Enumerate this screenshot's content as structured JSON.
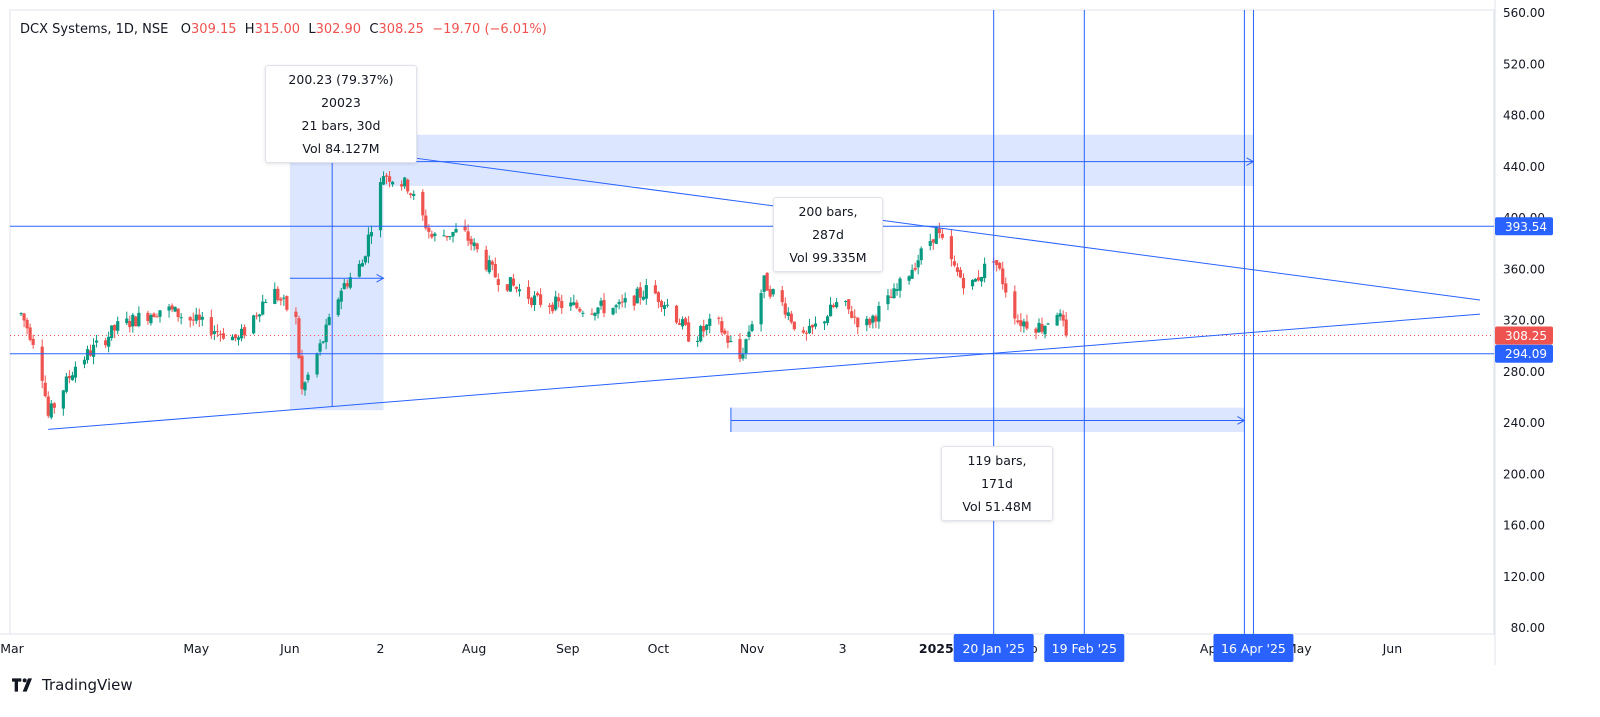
{
  "legend": {
    "symbol": "DCX Systems, 1D, NSE",
    "o_label": "O",
    "o_value": "309.15",
    "h_label": "H",
    "h_value": "315.00",
    "l_label": "L",
    "l_value": "302.90",
    "c_label": "C",
    "c_value": "308.25",
    "change": "−19.70 (−6.01%)"
  },
  "brand": {
    "name": "TradingView"
  },
  "measure_boxes": {
    "box1": {
      "line1": "200.23 (79.37%) 20023",
      "line2": "21 bars, 30d",
      "line3": "Vol 84.127M"
    },
    "box2": {
      "line1": "200 bars, 287d",
      "line2": "Vol 99.335M"
    },
    "box3": {
      "line1": "119 bars, 171d",
      "line2": "Vol 51.48M"
    }
  },
  "colors": {
    "up": "#089981",
    "down": "#ef5350",
    "drawing": "#2962ff",
    "drawing_fill": "rgba(41,98,255,0.16)",
    "axis_text": "#131722"
  },
  "chart_data": {
    "type": "candlestick",
    "symbol": "DCX Systems",
    "interval": "1D",
    "exchange": "NSE",
    "y_axis": {
      "range": [
        80,
        560
      ],
      "ticks": [
        "80.00",
        "120.00",
        "160.00",
        "200.00",
        "240.00",
        "280.00",
        "320.00",
        "360.00",
        "400.00",
        "440.00",
        "480.00",
        "520.00",
        "560.00"
      ]
    },
    "x_axis": {
      "range": [
        "2024-03-01",
        "2025-06-30"
      ],
      "tick_labels": [
        {
          "date": "2024-03-01",
          "label": "Mar"
        },
        {
          "date": "2024-05-01",
          "label": "May"
        },
        {
          "date": "2024-06-01",
          "label": "Jun"
        },
        {
          "date": "2024-07-01",
          "label": "2"
        },
        {
          "date": "2024-08-01",
          "label": "Aug"
        },
        {
          "date": "2024-09-01",
          "label": "Sep"
        },
        {
          "date": "2024-10-01",
          "label": "Oct"
        },
        {
          "date": "2024-11-01",
          "label": "Nov"
        },
        {
          "date": "2024-12-01",
          "label": "3"
        },
        {
          "date": "2025-01-01",
          "label": "2025"
        },
        {
          "date": "2025-02-01",
          "label": "eb"
        },
        {
          "date": "2025-03-01",
          "label": "r"
        },
        {
          "date": "2025-04-01",
          "label": "Ap"
        },
        {
          "date": "2025-05-01",
          "label": "May"
        },
        {
          "date": "2025-06-01",
          "label": "Jun"
        }
      ],
      "date_badges": [
        {
          "date": "2025-01-20",
          "label": "20 Jan '25"
        },
        {
          "date": "2025-02-19",
          "label": "19 Feb '25"
        },
        {
          "date": "2025-04-16",
          "label": "16 Apr '25"
        }
      ]
    },
    "price_labels": [
      {
        "value": 393.54,
        "label": "393.54",
        "kind": "line"
      },
      {
        "value": 308.25,
        "label": "308.25",
        "kind": "last"
      },
      {
        "value": 294.09,
        "label": "294.09",
        "kind": "line"
      }
    ],
    "horizontal_lines": [
      393.54,
      294.09
    ],
    "vertical_lines": [
      "2025-01-20",
      "2025-02-19",
      "2025-04-13",
      "2025-04-16"
    ],
    "trendlines": [
      {
        "from": {
          "date": "2024-03-13",
          "price": 235
        },
        "to": {
          "date": "2025-06-30",
          "price": 325
        }
      },
      {
        "from": {
          "date": "2024-07-02",
          "price": 450
        },
        "to": {
          "date": "2025-06-30",
          "price": 336
        }
      }
    ],
    "ranges": [
      {
        "from": {
          "date": "2024-06-01",
          "price": 450
        },
        "to": {
          "date": "2024-07-02",
          "price": 250
        }
      },
      {
        "from": {
          "date": "2024-07-02",
          "price": 465
        },
        "to": {
          "date": "2025-04-16",
          "price": 425
        }
      },
      {
        "from": {
          "date": "2024-10-25",
          "price": 252
        },
        "to": {
          "date": "2025-04-13",
          "price": 233
        }
      }
    ],
    "arrows": [
      {
        "from": {
          "date": "2024-06-15",
          "price": 253
        },
        "to": {
          "date": "2024-06-15",
          "price": 450
        }
      },
      {
        "from": {
          "date": "2024-06-01",
          "price": 353
        },
        "to": {
          "date": "2024-07-02",
          "price": 353
        }
      },
      {
        "from": {
          "date": "2024-07-02",
          "price": 444
        },
        "to": {
          "date": "2025-04-16",
          "price": 444
        }
      },
      {
        "from": {
          "date": "2024-10-25",
          "price": 242
        },
        "to": {
          "date": "2025-04-13",
          "price": 242
        }
      }
    ],
    "anchors": [
      {
        "date": "2024-03-04",
        "price": 325
      },
      {
        "date": "2024-03-10",
        "price": 295
      },
      {
        "date": "2024-03-13",
        "price": 245
      },
      {
        "date": "2024-03-22",
        "price": 285
      },
      {
        "date": "2024-04-05",
        "price": 315
      },
      {
        "date": "2024-04-20",
        "price": 330
      },
      {
        "date": "2024-05-05",
        "price": 315
      },
      {
        "date": "2024-05-15",
        "price": 305
      },
      {
        "date": "2024-05-26",
        "price": 345
      },
      {
        "date": "2024-06-03",
        "price": 320
      },
      {
        "date": "2024-06-05",
        "price": 265
      },
      {
        "date": "2024-06-12",
        "price": 305
      },
      {
        "date": "2024-06-18",
        "price": 345
      },
      {
        "date": "2024-06-25",
        "price": 365
      },
      {
        "date": "2024-07-02",
        "price": 435
      },
      {
        "date": "2024-07-10",
        "price": 425
      },
      {
        "date": "2024-07-18",
        "price": 385
      },
      {
        "date": "2024-07-28",
        "price": 390
      },
      {
        "date": "2024-08-08",
        "price": 355
      },
      {
        "date": "2024-08-15",
        "price": 345
      },
      {
        "date": "2024-08-22",
        "price": 335
      },
      {
        "date": "2024-09-05",
        "price": 330
      },
      {
        "date": "2024-09-18",
        "price": 330
      },
      {
        "date": "2024-09-28",
        "price": 345
      },
      {
        "date": "2024-10-05",
        "price": 330
      },
      {
        "date": "2024-10-12",
        "price": 305
      },
      {
        "date": "2024-10-20",
        "price": 320
      },
      {
        "date": "2024-10-28",
        "price": 290
      },
      {
        "date": "2024-11-05",
        "price": 350
      },
      {
        "date": "2024-11-12",
        "price": 330
      },
      {
        "date": "2024-11-18",
        "price": 305
      },
      {
        "date": "2024-11-30",
        "price": 335
      },
      {
        "date": "2024-12-08",
        "price": 315
      },
      {
        "date": "2024-12-18",
        "price": 340
      },
      {
        "date": "2024-12-25",
        "price": 365
      },
      {
        "date": "2025-01-01",
        "price": 390
      },
      {
        "date": "2025-01-07",
        "price": 360
      },
      {
        "date": "2025-01-12",
        "price": 345
      },
      {
        "date": "2025-01-20",
        "price": 370
      },
      {
        "date": "2025-01-28",
        "price": 320
      },
      {
        "date": "2025-02-05",
        "price": 315
      },
      {
        "date": "2025-02-10",
        "price": 328
      },
      {
        "date": "2025-02-13",
        "price": 308
      }
    ]
  }
}
